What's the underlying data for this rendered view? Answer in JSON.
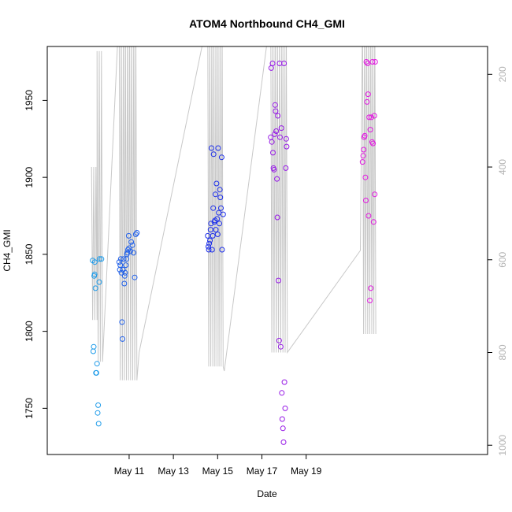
{
  "chart_data": {
    "type": "scatter",
    "title": "ATOM4 Northbound CH4_GMI",
    "xlabel": "Date",
    "ylabel": "CH4_GMI",
    "xlim": [
      -1.7,
      18.2
    ],
    "ylim": [
      1720,
      1985
    ],
    "y2lim": [
      1020,
      140
    ],
    "x_origin_label": "May 9",
    "x_tick_values": [
      2,
      4,
      6,
      8,
      10
    ],
    "x_tick_labels": [
      "May 11",
      "May 13",
      "May 15",
      "May 17",
      "May 19"
    ],
    "y_ticks": [
      1750,
      1800,
      1850,
      1900,
      1950
    ],
    "y2_ticks": [
      200,
      400,
      600,
      800,
      1000
    ],
    "grid": false,
    "legend": "none",
    "colors": {
      "flight1": "#1E9BE9",
      "flight2": "#2060EA",
      "flight3": "#1C2EEA",
      "flight4": "#9618E6",
      "flight5": "#E217E0",
      "altitude_line": "#C8C8C8"
    },
    "series": [
      {
        "color": "#1E9BE9",
        "x": [
          0.35,
          0.38,
          0.4,
          0.42,
          0.44,
          0.45,
          0.48,
          0.5,
          0.52,
          0.55,
          0.58,
          0.6,
          0.62,
          0.65,
          0.66,
          0.75
        ],
        "y": [
          1846,
          1787,
          1790,
          1836,
          1837,
          1845,
          1828,
          1773,
          1773,
          1779,
          1747,
          1752,
          1740,
          1832,
          1847,
          1847
        ]
      },
      {
        "color": "#2060EA",
        "x": [
          1.55,
          1.58,
          1.6,
          1.62,
          1.65,
          1.68,
          1.7,
          1.72,
          1.75,
          1.78,
          1.8,
          1.82,
          1.85,
          1.88,
          1.9,
          1.92,
          1.95,
          1.98,
          2.0,
          2.05,
          2.1,
          2.15,
          2.2,
          2.25,
          2.3,
          2.35
        ],
        "y": [
          1845,
          1840,
          1843,
          1847,
          1838,
          1806,
          1795,
          1840,
          1847,
          1831,
          1836,
          1838,
          1843,
          1847,
          1850,
          1851,
          1853,
          1862,
          1854,
          1852,
          1858,
          1856,
          1851,
          1835,
          1863,
          1864
        ]
      },
      {
        "color": "#1C2EEA",
        "x": [
          5.55,
          5.58,
          5.6,
          5.62,
          5.65,
          5.68,
          5.7,
          5.72,
          5.75,
          5.78,
          5.8,
          5.82,
          5.85,
          5.88,
          5.9,
          5.92,
          5.95,
          5.98,
          6.0,
          6.02,
          6.05,
          6.08,
          6.1,
          6.12,
          6.15,
          6.18,
          6.2,
          6.25
        ],
        "y": [
          1862,
          1855,
          1853,
          1857,
          1859,
          1866,
          1870,
          1919,
          1853,
          1862,
          1880,
          1915,
          1871,
          1872,
          1889,
          1866,
          1896,
          1873,
          1863,
          1919,
          1877,
          1870,
          1892,
          1887,
          1880,
          1913,
          1853,
          1876
        ]
      },
      {
        "color": "#9618E6",
        "x": [
          8.4,
          8.42,
          8.45,
          8.48,
          8.5,
          8.52,
          8.55,
          8.58,
          8.6,
          8.62,
          8.65,
          8.68,
          8.7,
          8.72,
          8.75,
          8.78,
          8.8,
          8.82,
          8.85,
          8.88,
          8.9,
          8.92,
          8.95,
          8.98,
          9.0,
          9.02,
          9.05,
          9.08,
          9.1,
          9.12
        ],
        "y": [
          1926,
          1971,
          1923,
          1974,
          1916,
          1906,
          1905,
          1928,
          1947,
          1943,
          1930,
          1899,
          1874,
          1940,
          1833,
          1794,
          1974,
          1926,
          1790,
          1932,
          1760,
          1743,
          1737,
          1728,
          1974,
          1767,
          1750,
          1906,
          1925,
          1920
        ]
      },
      {
        "color": "#E217E0",
        "x": [
          12.55,
          12.58,
          12.6,
          12.62,
          12.65,
          12.68,
          12.7,
          12.72,
          12.75,
          12.78,
          12.8,
          12.82,
          12.85,
          12.88,
          12.9,
          12.92,
          12.95,
          12.98,
          13.0,
          13.02,
          13.05,
          13.08,
          13.1,
          13.12
        ],
        "y": [
          1910,
          1914,
          1918,
          1926,
          1927,
          1900,
          1885,
          1975,
          1949,
          1974,
          1954,
          1875,
          1939,
          1820,
          1931,
          1828,
          1939,
          1923,
          1975,
          1922,
          1871,
          1940,
          1889,
          1975
        ]
      }
    ]
  }
}
